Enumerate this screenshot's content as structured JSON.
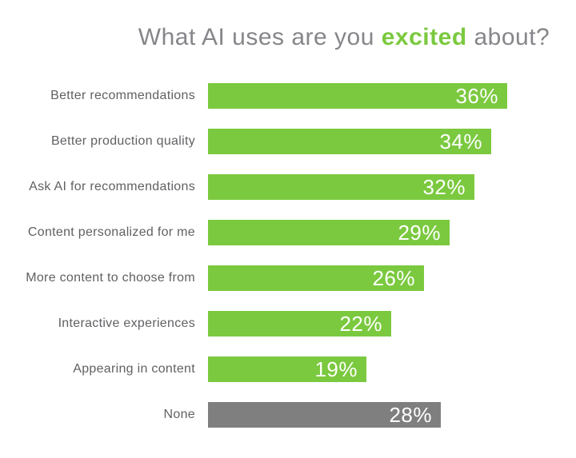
{
  "title": {
    "prefix": "What AI uses are you ",
    "highlight": "excited",
    "suffix": " about?"
  },
  "colors": {
    "bar_green": "#7bc93f",
    "bar_gray": "#7f7f7f",
    "title_gray": "#85868a",
    "label_gray": "#606164",
    "value_text": "#ffffff",
    "title_highlight_green": "#7bc93f"
  },
  "chart_data": {
    "type": "bar",
    "orientation": "horizontal",
    "title": "What AI uses are you excited about?",
    "title_highlight_word": "excited",
    "xlabel": "",
    "ylabel": "",
    "axes_visible": false,
    "grid": false,
    "value_label_position": "inside-end",
    "value_suffix": "%",
    "xlim": [
      0,
      38
    ],
    "categories": [
      "Better recommendations",
      "Better production quality",
      "Ask AI for recommendations",
      "Content personalized for me",
      "More content to choose from",
      "Interactive experiences",
      "Appearing in content",
      "None"
    ],
    "values": [
      36,
      34,
      32,
      29,
      26,
      22,
      19,
      28
    ],
    "bars": [
      {
        "label": "Better recommendations",
        "value": 36,
        "display": "36%",
        "color": "green"
      },
      {
        "label": "Better production quality",
        "value": 34,
        "display": "34%",
        "color": "green"
      },
      {
        "label": "Ask AI for recommendations",
        "value": 32,
        "display": "32%",
        "color": "green"
      },
      {
        "label": "Content personalized for me",
        "value": 29,
        "display": "29%",
        "color": "green"
      },
      {
        "label": "More content to choose from",
        "value": 26,
        "display": "26%",
        "color": "green"
      },
      {
        "label": "Interactive experiences",
        "value": 22,
        "display": "22%",
        "color": "green"
      },
      {
        "label": "Appearing in content",
        "value": 19,
        "display": "19%",
        "color": "green"
      },
      {
        "label": "None",
        "value": 28,
        "display": "28%",
        "color": "gray"
      }
    ]
  }
}
